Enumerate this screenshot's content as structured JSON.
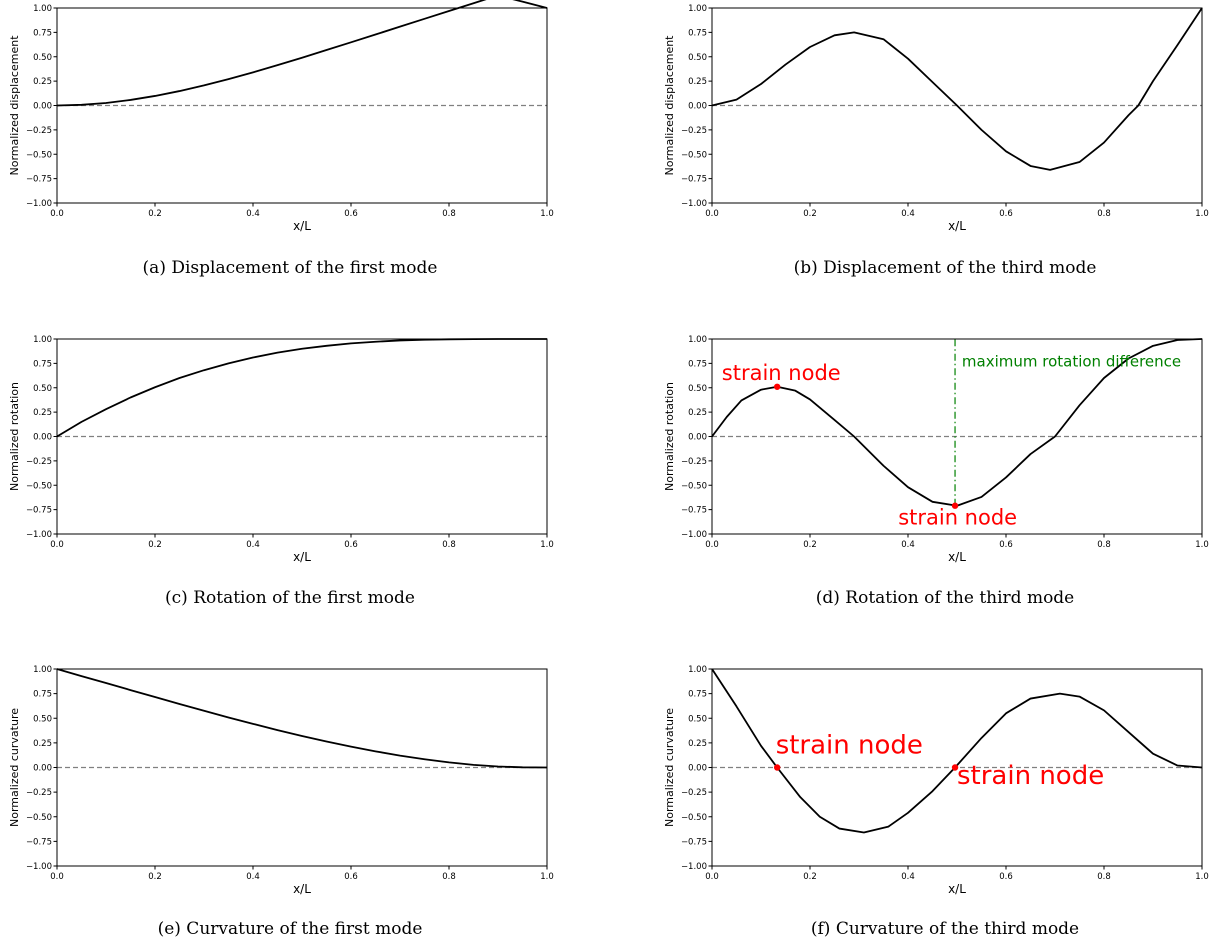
{
  "chart_data": [
    {
      "id": "a",
      "type": "line",
      "caption": "(a) Displacement of the first mode",
      "xlabel": "x/L",
      "ylabel": "Normalized displacement",
      "xlim": [
        0,
        1
      ],
      "ylim": [
        -1,
        1
      ],
      "xticks": [
        "0.0",
        "0.2",
        "0.4",
        "0.6",
        "0.8",
        "1.0"
      ],
      "yticks": [
        "1.00",
        "0.75",
        "0.50",
        "0.25",
        "0.00",
        "−0.25",
        "−0.50",
        "−0.75",
        "−1.00"
      ],
      "grid": false,
      "reference_line": {
        "y": 0,
        "style": "dashed",
        "color": "#808080"
      },
      "series": [
        {
          "color": "#000000",
          "x": [
            0,
            0.05,
            0.1,
            0.15,
            0.2,
            0.25,
            0.3,
            0.35,
            0.4,
            0.45,
            0.5,
            0.55,
            0.6,
            0.65,
            0.7,
            0.75,
            0.8,
            0.85,
            0.9,
            0.95,
            1.0
          ],
          "y": [
            0,
            0.007,
            0.026,
            0.057,
            0.098,
            0.148,
            0.206,
            0.271,
            0.34,
            0.414,
            0.49,
            0.569,
            0.648,
            0.728,
            0.809,
            0.889,
            0.969,
            1.049,
            1.129,
            1.065,
            1.0
          ]
        }
      ],
      "annotations": []
    },
    {
      "id": "b",
      "type": "line",
      "caption": "(b) Displacement of the third mode",
      "xlabel": "x/L",
      "ylabel": "Normalized displacement",
      "xlim": [
        0,
        1
      ],
      "ylim": [
        -1,
        1
      ],
      "xticks": [
        "0.0",
        "0.2",
        "0.4",
        "0.6",
        "0.8",
        "1.0"
      ],
      "yticks": [
        "1.00",
        "0.75",
        "0.50",
        "0.25",
        "0.00",
        "−0.25",
        "−0.50",
        "−0.75",
        "−1.00"
      ],
      "grid": false,
      "reference_line": {
        "y": 0,
        "style": "dashed",
        "color": "#808080"
      },
      "series": [
        {
          "color": "#000000",
          "x": [
            0,
            0.05,
            0.1,
            0.15,
            0.2,
            0.25,
            0.29,
            0.35,
            0.4,
            0.45,
            0.5,
            0.55,
            0.6,
            0.65,
            0.69,
            0.75,
            0.8,
            0.85,
            0.87,
            0.9,
            0.95,
            1.0
          ],
          "y": [
            0,
            0.06,
            0.22,
            0.42,
            0.6,
            0.72,
            0.75,
            0.68,
            0.48,
            0.24,
            0.0,
            -0.25,
            -0.47,
            -0.62,
            -0.66,
            -0.58,
            -0.38,
            -0.1,
            0.0,
            0.25,
            0.62,
            1.0
          ]
        }
      ],
      "annotations": []
    },
    {
      "id": "c",
      "type": "line",
      "caption": "(c) Rotation of the first mode",
      "xlabel": "x/L",
      "ylabel": "Normalized rotation",
      "xlim": [
        0,
        1
      ],
      "ylim": [
        -1,
        1
      ],
      "xticks": [
        "0.0",
        "0.2",
        "0.4",
        "0.6",
        "0.8",
        "1.0"
      ],
      "yticks": [
        "1.00",
        "0.75",
        "0.50",
        "0.25",
        "0.00",
        "−0.25",
        "−0.50",
        "−0.75",
        "−1.00"
      ],
      "grid": false,
      "reference_line": {
        "y": 0,
        "style": "dashed",
        "color": "#808080"
      },
      "series": [
        {
          "color": "#000000",
          "x": [
            0,
            0.05,
            0.1,
            0.15,
            0.2,
            0.25,
            0.3,
            0.35,
            0.4,
            0.45,
            0.5,
            0.55,
            0.6,
            0.65,
            0.7,
            0.75,
            0.8,
            0.85,
            0.9,
            0.95,
            1.0
          ],
          "y": [
            0,
            0.15,
            0.28,
            0.4,
            0.505,
            0.6,
            0.68,
            0.75,
            0.81,
            0.86,
            0.9,
            0.93,
            0.955,
            0.972,
            0.985,
            0.993,
            0.997,
            0.999,
            1.0,
            1.0,
            1.0
          ]
        }
      ],
      "annotations": []
    },
    {
      "id": "d",
      "type": "line",
      "caption": "(d) Rotation of the third mode",
      "xlabel": "x/L",
      "ylabel": "Normalized rotation",
      "xlim": [
        0,
        1
      ],
      "ylim": [
        -1,
        1
      ],
      "xticks": [
        "0.0",
        "0.2",
        "0.4",
        "0.6",
        "0.8",
        "1.0"
      ],
      "yticks": [
        "1.00",
        "0.75",
        "0.50",
        "0.25",
        "0.00",
        "−0.25",
        "−0.50",
        "−0.75",
        "−1.00"
      ],
      "grid": false,
      "reference_line": {
        "y": 0,
        "style": "dashed",
        "color": "#808080"
      },
      "series": [
        {
          "color": "#000000",
          "x": [
            0,
            0.03,
            0.06,
            0.1,
            0.133,
            0.17,
            0.2,
            0.25,
            0.29,
            0.35,
            0.4,
            0.45,
            0.5,
            0.55,
            0.6,
            0.65,
            0.7,
            0.75,
            0.8,
            0.85,
            0.9,
            0.95,
            1.0
          ],
          "y": [
            0,
            0.2,
            0.37,
            0.48,
            0.51,
            0.47,
            0.38,
            0.17,
            0.0,
            -0.3,
            -0.52,
            -0.67,
            -0.71,
            -0.62,
            -0.42,
            -0.18,
            0.0,
            0.32,
            0.6,
            0.8,
            0.93,
            0.99,
            1.0
          ]
        }
      ],
      "points": [
        {
          "x": 0.133,
          "y": 0.51,
          "color": "#ff0000"
        },
        {
          "x": 0.496,
          "y": -0.71,
          "color": "#ff0000"
        }
      ],
      "vline": {
        "x": 0.496,
        "y_from": -0.71,
        "y_to": 1.0,
        "color": "#008000",
        "style": "dashdot"
      },
      "annotations": [
        {
          "text": "strain node",
          "x": 0.02,
          "y": 0.58,
          "size": "medium",
          "color": "#ff0000"
        },
        {
          "text": "strain node",
          "x": 0.38,
          "y": -0.9,
          "size": "medium",
          "color": "#ff0000"
        },
        {
          "text": "maximum rotation difference",
          "x": 0.51,
          "y": 0.72,
          "size": "small",
          "color": "#008000"
        }
      ]
    },
    {
      "id": "e",
      "type": "line",
      "caption": "(e) Curvature of the first mode",
      "xlabel": "x/L",
      "ylabel": "Normalized curvature",
      "xlim": [
        0,
        1
      ],
      "ylim": [
        -1,
        1
      ],
      "xticks": [
        "0.0",
        "0.2",
        "0.4",
        "0.6",
        "0.8",
        "1.0"
      ],
      "yticks": [
        "1.00",
        "0.75",
        "0.50",
        "0.25",
        "0.00",
        "−0.25",
        "−0.50",
        "−0.75",
        "−1.00"
      ],
      "grid": false,
      "reference_line": {
        "y": 0,
        "style": "dashed",
        "color": "#808080"
      },
      "series": [
        {
          "color": "#000000",
          "x": [
            0,
            0.05,
            0.1,
            0.15,
            0.2,
            0.25,
            0.3,
            0.35,
            0.4,
            0.45,
            0.5,
            0.55,
            0.6,
            0.65,
            0.7,
            0.75,
            0.8,
            0.85,
            0.9,
            0.95,
            1.0
          ],
          "y": [
            1.0,
            0.928,
            0.858,
            0.786,
            0.716,
            0.645,
            0.576,
            0.508,
            0.443,
            0.38,
            0.32,
            0.264,
            0.212,
            0.164,
            0.121,
            0.084,
            0.052,
            0.027,
            0.01,
            0.002,
            0.0
          ]
        }
      ],
      "annotations": []
    },
    {
      "id": "f",
      "type": "line",
      "caption": "(f) Curvature of the third mode",
      "xlabel": "x/L",
      "ylabel": "Normalized curvature",
      "xlim": [
        0,
        1
      ],
      "ylim": [
        -1,
        1
      ],
      "xticks": [
        "0.0",
        "0.2",
        "0.4",
        "0.6",
        "0.8",
        "1.0"
      ],
      "yticks": [
        "1.00",
        "0.75",
        "0.50",
        "0.25",
        "0.00",
        "−0.25",
        "−0.50",
        "−0.75",
        "−1.00"
      ],
      "grid": false,
      "reference_line": {
        "y": 0,
        "style": "dashed",
        "color": "#808080"
      },
      "series": [
        {
          "color": "#000000",
          "x": [
            0,
            0.05,
            0.1,
            0.133,
            0.18,
            0.22,
            0.26,
            0.31,
            0.36,
            0.4,
            0.45,
            0.496,
            0.55,
            0.6,
            0.65,
            0.71,
            0.75,
            0.8,
            0.85,
            0.9,
            0.95,
            1.0
          ],
          "y": [
            1.0,
            0.62,
            0.22,
            0.0,
            -0.3,
            -0.5,
            -0.62,
            -0.66,
            -0.6,
            -0.46,
            -0.24,
            0.0,
            0.3,
            0.55,
            0.7,
            0.75,
            0.72,
            0.58,
            0.36,
            0.14,
            0.02,
            0.0
          ]
        }
      ],
      "points": [
        {
          "x": 0.133,
          "y": 0.0,
          "color": "#ff0000"
        },
        {
          "x": 0.496,
          "y": 0.0,
          "color": "#ff0000"
        }
      ],
      "annotations": [
        {
          "text": "strain node",
          "x": 0.13,
          "y": 0.14,
          "size": "large",
          "color": "#ff0000"
        },
        {
          "text": "strain node",
          "x": 0.5,
          "y": -0.17,
          "size": "large",
          "color": "#ff0000"
        }
      ]
    }
  ]
}
